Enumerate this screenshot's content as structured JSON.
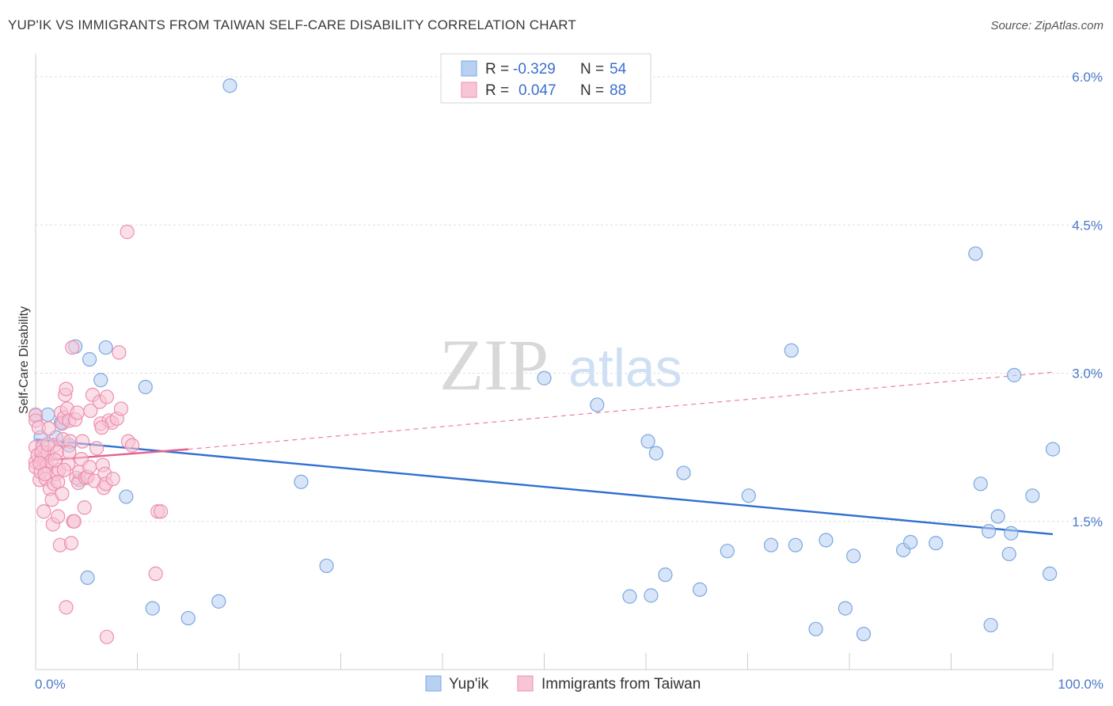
{
  "chart_data": {
    "type": "scatter",
    "title": "YUP'IK VS IMMIGRANTS FROM TAIWAN SELF-CARE DISABILITY CORRELATION CHART",
    "source": "Source: ZipAtlas.com",
    "xlabel": "",
    "ylabel": "Self-Care Disability",
    "xlim": [
      0,
      100
    ],
    "ylim": [
      0,
      6.2
    ],
    "x_tick_labels": [
      "0.0%",
      "100.0%"
    ],
    "y_ticks": [
      1.5,
      3.0,
      4.5,
      6.0
    ],
    "y_tick_labels": [
      "1.5%",
      "3.0%",
      "4.5%",
      "6.0%"
    ],
    "grid": true,
    "watermark": "ZIPatlas",
    "legend": {
      "position": "top-center",
      "entries": [
        {
          "label": "R =",
          "r": "-0.329",
          "n_label": "N =",
          "n": "54"
        },
        {
          "label": "R =",
          "r": "0.047",
          "n_label": "N =",
          "n": "88"
        }
      ]
    },
    "series": [
      {
        "name": "Yup'ik",
        "color": "#7aa7e0",
        "fill": "#b8d0f2",
        "trend": {
          "x": [
            0,
            100
          ],
          "y": [
            2.33,
            1.37
          ],
          "style": "solid",
          "color": "#2f6fd0"
        },
        "points": [
          [
            0.0,
            2.57
          ],
          [
            0.5,
            2.35
          ],
          [
            1.2,
            2.58
          ],
          [
            2.0,
            2.35
          ],
          [
            2.7,
            2.5
          ],
          [
            3.3,
            2.27
          ],
          [
            3.9,
            3.27
          ],
          [
            4.3,
            1.92
          ],
          [
            5.1,
            0.93
          ],
          [
            5.3,
            3.14
          ],
          [
            6.4,
            2.93
          ],
          [
            6.9,
            3.26
          ],
          [
            8.9,
            1.75
          ],
          [
            10.8,
            2.86
          ],
          [
            11.5,
            0.62
          ],
          [
            15.0,
            0.52
          ],
          [
            18.0,
            0.69
          ],
          [
            19.1,
            5.91
          ],
          [
            26.1,
            1.9
          ],
          [
            28.6,
            1.05
          ],
          [
            50.0,
            2.95
          ],
          [
            55.2,
            2.68
          ],
          [
            58.4,
            0.74
          ],
          [
            60.2,
            2.31
          ],
          [
            60.5,
            0.75
          ],
          [
            61.0,
            2.19
          ],
          [
            61.9,
            0.96
          ],
          [
            63.7,
            1.99
          ],
          [
            65.3,
            0.81
          ],
          [
            68.0,
            1.2
          ],
          [
            70.1,
            1.76
          ],
          [
            72.3,
            1.26
          ],
          [
            74.3,
            3.23
          ],
          [
            74.7,
            1.26
          ],
          [
            76.7,
            0.41
          ],
          [
            77.7,
            1.31
          ],
          [
            79.6,
            0.62
          ],
          [
            80.4,
            1.15
          ],
          [
            81.4,
            0.36
          ],
          [
            85.3,
            1.21
          ],
          [
            86.0,
            1.29
          ],
          [
            88.5,
            1.28
          ],
          [
            92.4,
            4.21
          ],
          [
            92.9,
            1.88
          ],
          [
            93.7,
            1.4
          ],
          [
            93.9,
            0.45
          ],
          [
            94.6,
            1.55
          ],
          [
            95.7,
            1.17
          ],
          [
            95.9,
            1.38
          ],
          [
            96.2,
            2.98
          ],
          [
            98.0,
            1.76
          ],
          [
            99.7,
            0.97
          ],
          [
            100.0,
            2.23
          ],
          [
            2.5,
            2.5
          ]
        ]
      },
      {
        "name": "Immigrants from Taiwan",
        "color": "#ec8fae",
        "fill": "#f7c5d6",
        "trend": {
          "x": [
            0,
            15
          ],
          "y": [
            2.11,
            2.23
          ],
          "style": "solid",
          "color": "#e2628e",
          "extension": {
            "x": [
              15,
              100
            ],
            "y": [
              2.23,
              3.01
            ],
            "style": "dashed"
          }
        },
        "points": [
          [
            0.0,
            2.58
          ],
          [
            0.0,
            2.52
          ],
          [
            0.0,
            2.25
          ],
          [
            0.0,
            2.1
          ],
          [
            0.0,
            2.05
          ],
          [
            0.2,
            2.17
          ],
          [
            0.3,
            2.45
          ],
          [
            0.4,
            1.92
          ],
          [
            0.5,
            2.0
          ],
          [
            0.6,
            2.13
          ],
          [
            0.7,
            2.26
          ],
          [
            0.8,
            1.6
          ],
          [
            0.9,
            2.13
          ],
          [
            1.0,
            1.93
          ],
          [
            1.1,
            2.06
          ],
          [
            1.2,
            2.2
          ],
          [
            1.3,
            2.44
          ],
          [
            1.4,
            1.83
          ],
          [
            1.5,
            2.11
          ],
          [
            1.6,
            1.72
          ],
          [
            1.7,
            1.47
          ],
          [
            1.8,
            1.88
          ],
          [
            1.9,
            2.27
          ],
          [
            2.0,
            1.98
          ],
          [
            2.1,
            2.2
          ],
          [
            2.2,
            1.55
          ],
          [
            2.3,
            2.02
          ],
          [
            2.4,
            1.26
          ],
          [
            2.5,
            2.6
          ],
          [
            2.6,
            2.49
          ],
          [
            2.7,
            2.33
          ],
          [
            2.8,
            2.55
          ],
          [
            2.9,
            2.78
          ],
          [
            3.0,
            2.84
          ],
          [
            3.0,
            0.63
          ],
          [
            3.1,
            2.64
          ],
          [
            3.2,
            2.08
          ],
          [
            3.3,
            2.52
          ],
          [
            3.4,
            2.31
          ],
          [
            3.5,
            1.28
          ],
          [
            3.6,
            3.26
          ],
          [
            3.7,
            1.5
          ],
          [
            3.8,
            1.5
          ],
          [
            3.9,
            2.53
          ],
          [
            4.0,
            1.94
          ],
          [
            4.2,
            1.89
          ],
          [
            4.3,
            2.0
          ],
          [
            4.5,
            2.13
          ],
          [
            4.6,
            2.31
          ],
          [
            4.8,
            1.64
          ],
          [
            4.9,
            1.94
          ],
          [
            5.1,
            1.95
          ],
          [
            5.4,
            2.62
          ],
          [
            5.6,
            2.78
          ],
          [
            5.8,
            1.91
          ],
          [
            6.0,
            2.24
          ],
          [
            6.3,
            2.71
          ],
          [
            6.4,
            2.49
          ],
          [
            6.6,
            2.07
          ],
          [
            6.7,
            1.84
          ],
          [
            6.8,
            1.98
          ],
          [
            6.9,
            1.88
          ],
          [
            7.0,
            2.76
          ],
          [
            7.0,
            0.33
          ],
          [
            7.2,
            2.52
          ],
          [
            7.5,
            2.5
          ],
          [
            7.6,
            1.93
          ],
          [
            8.0,
            2.54
          ],
          [
            8.2,
            3.21
          ],
          [
            8.4,
            2.64
          ],
          [
            9.0,
            4.43
          ],
          [
            9.1,
            2.31
          ],
          [
            9.5,
            2.27
          ],
          [
            11.8,
            0.97
          ],
          [
            12.0,
            1.6
          ],
          [
            12.3,
            1.6
          ],
          [
            0.6,
            2.2
          ],
          [
            1.9,
            2.12
          ],
          [
            2.2,
            1.9
          ],
          [
            2.8,
            2.02
          ],
          [
            3.3,
            2.2
          ],
          [
            0.4,
            2.09
          ],
          [
            1.2,
            2.28
          ],
          [
            2.6,
            1.78
          ],
          [
            4.1,
            2.6
          ],
          [
            5.3,
            2.05
          ],
          [
            6.5,
            2.45
          ],
          [
            0.9,
            1.98
          ]
        ]
      }
    ]
  },
  "bottom_legend": [
    "Yup'ik",
    "Immigrants from Taiwan"
  ]
}
